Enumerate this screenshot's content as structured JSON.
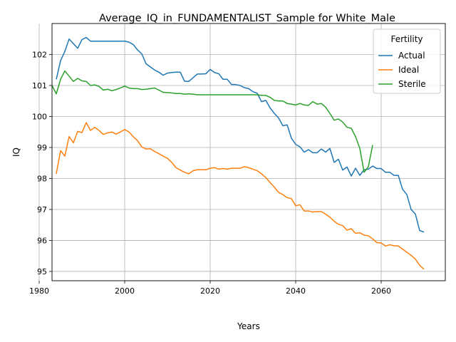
{
  "chart_data": {
    "type": "line",
    "title": "Average_IQ_in_FUNDAMENTALIST_Sample for White_Male",
    "xlabel": "Years",
    "ylabel": "IQ",
    "xlim": [
      1983,
      2075
    ],
    "ylim": [
      94.7,
      103.0
    ],
    "xticks": [
      1980,
      2000,
      2020,
      2040,
      2060
    ],
    "yticks": [
      95,
      96,
      97,
      98,
      99,
      100,
      101,
      102
    ],
    "grid": true,
    "legend": {
      "title": "Fertility",
      "placement": "top-right"
    },
    "series": [
      {
        "name": "Actual",
        "color": "#1f77b4",
        "x": [
          1984,
          1985,
          1986,
          1987,
          1988,
          1989,
          1990,
          1991,
          1992,
          1993,
          1994,
          1995,
          1996,
          1997,
          1998,
          1999,
          2000,
          2001,
          2002,
          2003,
          2004,
          2005,
          2006,
          2007,
          2008,
          2009,
          2010,
          2011,
          2012,
          2013,
          2014,
          2015,
          2016,
          2017,
          2018,
          2019,
          2020,
          2021,
          2022,
          2023,
          2024,
          2025,
          2026,
          2027,
          2028,
          2029,
          2030,
          2031,
          2032,
          2033,
          2034,
          2035,
          2036,
          2037,
          2038,
          2039,
          2040,
          2041,
          2042,
          2043,
          2044,
          2045,
          2046,
          2047,
          2048,
          2049,
          2050,
          2051,
          2052,
          2053,
          2054,
          2055,
          2056,
          2057,
          2058,
          2059,
          2060,
          2061,
          2062,
          2063,
          2064,
          2065,
          2066,
          2067,
          2068,
          2069,
          2070
        ],
        "values": [
          101.2,
          101.8,
          102.1,
          102.5,
          102.35,
          102.2,
          102.48,
          102.55,
          102.43,
          102.43,
          102.43,
          102.43,
          102.43,
          102.43,
          102.43,
          102.43,
          102.43,
          102.4,
          102.32,
          102.15,
          102.02,
          101.7,
          101.6,
          101.5,
          101.43,
          101.33,
          101.4,
          101.42,
          101.43,
          101.43,
          101.14,
          101.13,
          101.25,
          101.37,
          101.37,
          101.38,
          101.52,
          101.42,
          101.38,
          101.2,
          101.2,
          101.03,
          101.03,
          101.0,
          100.93,
          100.9,
          100.8,
          100.75,
          100.48,
          100.52,
          100.28,
          100.1,
          99.95,
          99.7,
          99.73,
          99.3,
          99.1,
          99.02,
          98.85,
          98.93,
          98.83,
          98.83,
          98.95,
          98.85,
          98.97,
          98.52,
          98.62,
          98.27,
          98.37,
          98.08,
          98.33,
          98.1,
          98.28,
          98.3,
          98.4,
          98.32,
          98.32,
          98.2,
          98.2,
          98.1,
          98.1,
          97.65,
          97.48,
          97.0,
          96.85,
          96.32,
          96.27
        ]
      },
      {
        "name": "Ideal",
        "color": "#ff7f0e",
        "x": [
          1984,
          1985,
          1986,
          1987,
          1988,
          1989,
          1990,
          1991,
          1992,
          1993,
          1994,
          1995,
          1996,
          1997,
          1998,
          1999,
          2000,
          2001,
          2002,
          2003,
          2004,
          2005,
          2006,
          2007,
          2008,
          2009,
          2010,
          2011,
          2012,
          2013,
          2014,
          2015,
          2016,
          2017,
          2018,
          2019,
          2020,
          2021,
          2022,
          2023,
          2024,
          2025,
          2026,
          2027,
          2028,
          2029,
          2030,
          2031,
          2032,
          2033,
          2034,
          2035,
          2036,
          2037,
          2038,
          2039,
          2040,
          2041,
          2042,
          2043,
          2044,
          2045,
          2046,
          2047,
          2048,
          2049,
          2050,
          2051,
          2052,
          2053,
          2054,
          2055,
          2056,
          2057,
          2058,
          2059,
          2060,
          2061,
          2062,
          2063,
          2064,
          2065,
          2066,
          2067,
          2068,
          2069,
          2070
        ],
        "values": [
          98.15,
          98.9,
          98.72,
          99.35,
          99.15,
          99.52,
          99.48,
          99.8,
          99.55,
          99.65,
          99.55,
          99.42,
          99.47,
          99.5,
          99.43,
          99.5,
          99.58,
          99.5,
          99.35,
          99.22,
          99.02,
          98.95,
          98.96,
          98.87,
          98.8,
          98.72,
          98.65,
          98.52,
          98.35,
          98.27,
          98.2,
          98.15,
          98.25,
          98.28,
          98.28,
          98.28,
          98.33,
          98.35,
          98.3,
          98.32,
          98.3,
          98.33,
          98.33,
          98.33,
          98.38,
          98.35,
          98.3,
          98.25,
          98.15,
          98.03,
          97.87,
          97.72,
          97.55,
          97.48,
          97.38,
          97.35,
          97.12,
          97.15,
          96.95,
          96.95,
          96.92,
          96.93,
          96.93,
          96.85,
          96.75,
          96.62,
          96.52,
          96.48,
          96.33,
          96.38,
          96.23,
          96.25,
          96.17,
          96.15,
          96.05,
          95.93,
          95.92,
          95.82,
          95.86,
          95.83,
          95.82,
          95.72,
          95.62,
          95.52,
          95.4,
          95.2,
          95.07
        ]
      },
      {
        "name": "Sterile",
        "color": "#2ca02c",
        "x": [
          1983,
          1984,
          1985,
          1986,
          1987,
          1988,
          1989,
          1990,
          1991,
          1992,
          1993,
          1994,
          1995,
          1996,
          1997,
          1998,
          1999,
          2000,
          2001,
          2002,
          2003,
          2004,
          2005,
          2006,
          2007,
          2008,
          2009,
          2010,
          2011,
          2012,
          2013,
          2014,
          2015,
          2016,
          2017,
          2018,
          2019,
          2020,
          2021,
          2022,
          2023,
          2024,
          2025,
          2026,
          2027,
          2028,
          2029,
          2030,
          2031,
          2032,
          2033,
          2034,
          2035,
          2036,
          2037,
          2038,
          2039,
          2040,
          2041,
          2042,
          2043,
          2044,
          2045,
          2046,
          2047,
          2048,
          2049,
          2050,
          2051,
          2052,
          2053,
          2054,
          2055,
          2056,
          2057,
          2058
        ],
        "values": [
          101.0,
          100.73,
          101.2,
          101.47,
          101.3,
          101.13,
          101.23,
          101.15,
          101.13,
          101.0,
          101.02,
          100.97,
          100.85,
          100.88,
          100.83,
          100.87,
          100.92,
          100.98,
          100.92,
          100.9,
          100.9,
          100.87,
          100.88,
          100.9,
          100.92,
          100.85,
          100.78,
          100.77,
          100.76,
          100.74,
          100.74,
          100.72,
          100.73,
          100.72,
          100.7,
          100.7,
          100.7,
          100.7,
          100.7,
          100.7,
          100.7,
          100.7,
          100.7,
          100.7,
          100.7,
          100.7,
          100.7,
          100.7,
          100.7,
          100.68,
          100.68,
          100.62,
          100.52,
          100.5,
          100.5,
          100.42,
          100.4,
          100.37,
          100.42,
          100.37,
          100.36,
          100.48,
          100.4,
          100.42,
          100.3,
          100.1,
          99.88,
          99.92,
          99.82,
          99.65,
          99.62,
          99.35,
          98.97,
          98.2,
          98.38,
          99.08
        ]
      }
    ]
  }
}
